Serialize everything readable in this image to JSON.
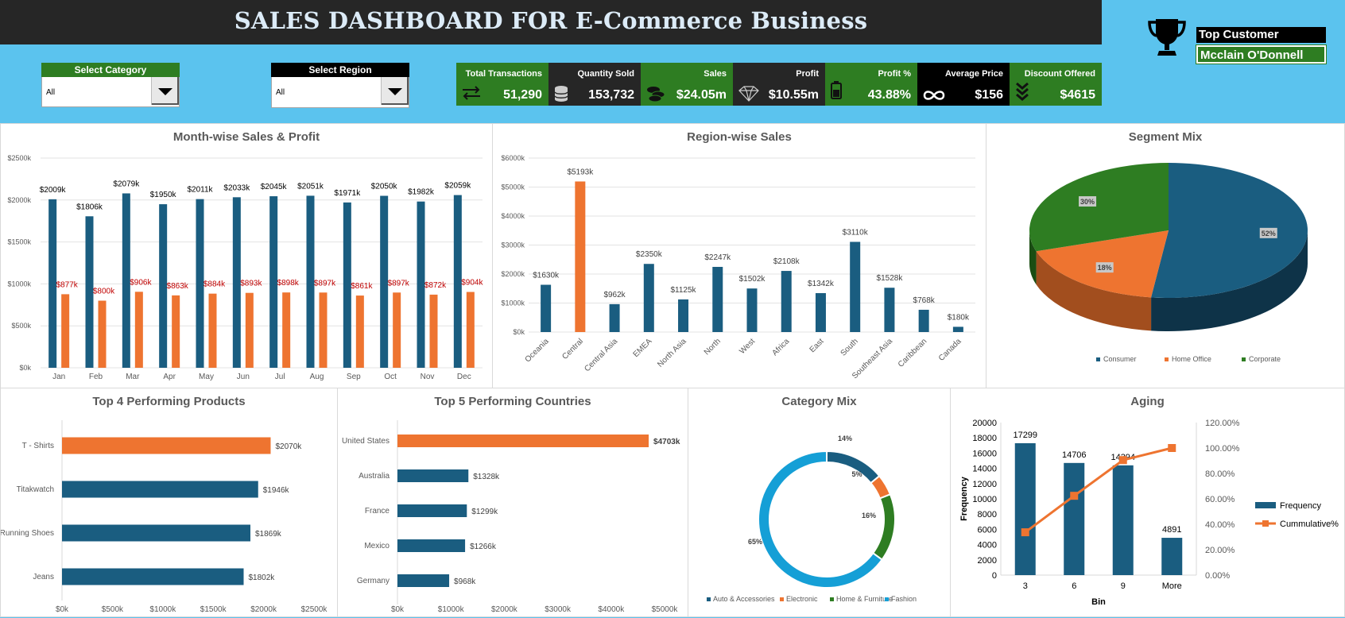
{
  "header": {
    "title": "SALES DASHBOARD FOR E-Commerce Business"
  },
  "top_customer": {
    "label": "Top Customer",
    "value": "Mcclain O'Donnell"
  },
  "filters": {
    "category": {
      "label": "Select Category",
      "value": "All"
    },
    "region": {
      "label": "Select Region",
      "value": "All"
    }
  },
  "kpis": [
    {
      "label": "Total Transactions",
      "value": "51,290",
      "icon": "transfer-arrows-icon"
    },
    {
      "label": "Quantity Sold",
      "value": "153,732",
      "icon": "database-icon"
    },
    {
      "label": "Sales",
      "value": "$24.05m",
      "icon": "coins-icon"
    },
    {
      "label": "Profit",
      "value": "$10.55m",
      "icon": "diamond-icon"
    },
    {
      "label": "Profit %",
      "value": "43.88%",
      "icon": "battery-icon"
    },
    {
      "label": "Average Price",
      "value": "$156",
      "icon": "infinity-icon"
    },
    {
      "label": "Discount Offered",
      "value": "$4615",
      "icon": "chevrons-down-icon"
    }
  ],
  "colors": {
    "blue": "#1a5d80",
    "orange": "#ee7430",
    "green": "#2e7d22",
    "cyan": "#159fd6",
    "dark": "#262626",
    "bg": "#5bc3ee"
  },
  "chart_data": [
    {
      "type": "bar",
      "title": "Month-wise Sales & Profit",
      "categories": [
        "Jan",
        "Feb",
        "Mar",
        "Apr",
        "May",
        "Jun",
        "Jul",
        "Aug",
        "Sep",
        "Oct",
        "Nov",
        "Dec"
      ],
      "series": [
        {
          "values": [
            2009,
            1806,
            2079,
            1950,
            2011,
            2033,
            2045,
            2051,
            1971,
            2050,
            1982,
            2059
          ]
        },
        {
          "values": [
            877,
            800,
            906,
            863,
            884,
            893,
            898,
            897,
            861,
            897,
            872,
            904
          ]
        }
      ],
      "ytick_labels": [
        "$0k",
        "$500k",
        "$1000k",
        "$1500k",
        "$2000k",
        "$2500k"
      ],
      "ylim": [
        0,
        2500
      ]
    },
    {
      "type": "bar",
      "title": "Region-wise Sales",
      "categories": [
        "Oceania",
        "Central",
        "Central Asia",
        "EMEA",
        "North Asia",
        "North",
        "West",
        "Africa",
        "East",
        "South",
        "Southeast Asia",
        "Caribbean",
        "Canada"
      ],
      "values": [
        1630,
        5193,
        962,
        2350,
        1125,
        2247,
        1502,
        2108,
        1342,
        3110,
        1528,
        768,
        180
      ],
      "highlight_index": 1,
      "ytick_labels": [
        "$0k",
        "$1000k",
        "$2000k",
        "$3000k",
        "$4000k",
        "$5000k",
        "$6000k"
      ],
      "ylim": [
        0,
        6000
      ]
    },
    {
      "type": "pie",
      "title": "Segment Mix",
      "labels": [
        "Consumer",
        "Home Office",
        "Corporate"
      ],
      "values": [
        52,
        18,
        30
      ],
      "value_labels": [
        "52%",
        "18%",
        "30%"
      ],
      "legend": "bottom"
    },
    {
      "type": "bar",
      "title": "Top 4 Performing Products",
      "orientation": "horizontal",
      "categories": [
        "T - Shirts",
        "Titakwatch",
        "Running Shoes",
        "Jeans"
      ],
      "values": [
        2070,
        1946,
        1869,
        1802
      ],
      "highlight_index": 0,
      "xtick_labels": [
        "$0k",
        "$500k",
        "$1000k",
        "$1500k",
        "$2000k",
        "$2500k"
      ],
      "xlim": [
        0,
        2500
      ]
    },
    {
      "type": "bar",
      "title": "Top 5 Performing Countries",
      "orientation": "horizontal",
      "categories": [
        "United States",
        "Australia",
        "France",
        "Mexico",
        "Germany"
      ],
      "values": [
        4703,
        1328,
        1299,
        1266,
        968
      ],
      "highlight_index": 0,
      "xtick_labels": [
        "$0k",
        "$1000k",
        "$2000k",
        "$3000k",
        "$4000k",
        "$5000k"
      ],
      "xlim": [
        0,
        5000
      ]
    },
    {
      "type": "pie",
      "title": "Category Mix",
      "donut": true,
      "labels": [
        "Auto & Accessories",
        "Electronic",
        "Home & Furniture",
        "Fashion"
      ],
      "values": [
        14,
        5,
        16,
        65
      ],
      "value_labels": [
        "14%",
        "5%",
        "16%",
        "65%"
      ],
      "legend": "bottom"
    },
    {
      "type": "bar",
      "title": "Aging",
      "categories": [
        "3",
        "6",
        "9",
        "More"
      ],
      "xlabel": "Bin",
      "ylabel": "Frequency",
      "series": [
        {
          "name": "Frequency",
          "values": [
            17299,
            14706,
            14394,
            4891
          ]
        },
        {
          "name": "Cummulative%",
          "type": "line",
          "values": [
            33.7,
            62.4,
            90.5,
            100
          ]
        }
      ],
      "ytick_labels": [
        "0",
        "2000",
        "4000",
        "6000",
        "8000",
        "10000",
        "12000",
        "14000",
        "16000",
        "18000",
        "20000"
      ],
      "y2tick_labels": [
        "0.00%",
        "20.00%",
        "40.00%",
        "60.00%",
        "80.00%",
        "100.00%",
        "120.00%"
      ],
      "ylim": [
        0,
        20000
      ],
      "y2lim": [
        0,
        120
      ],
      "legend": "right"
    }
  ]
}
